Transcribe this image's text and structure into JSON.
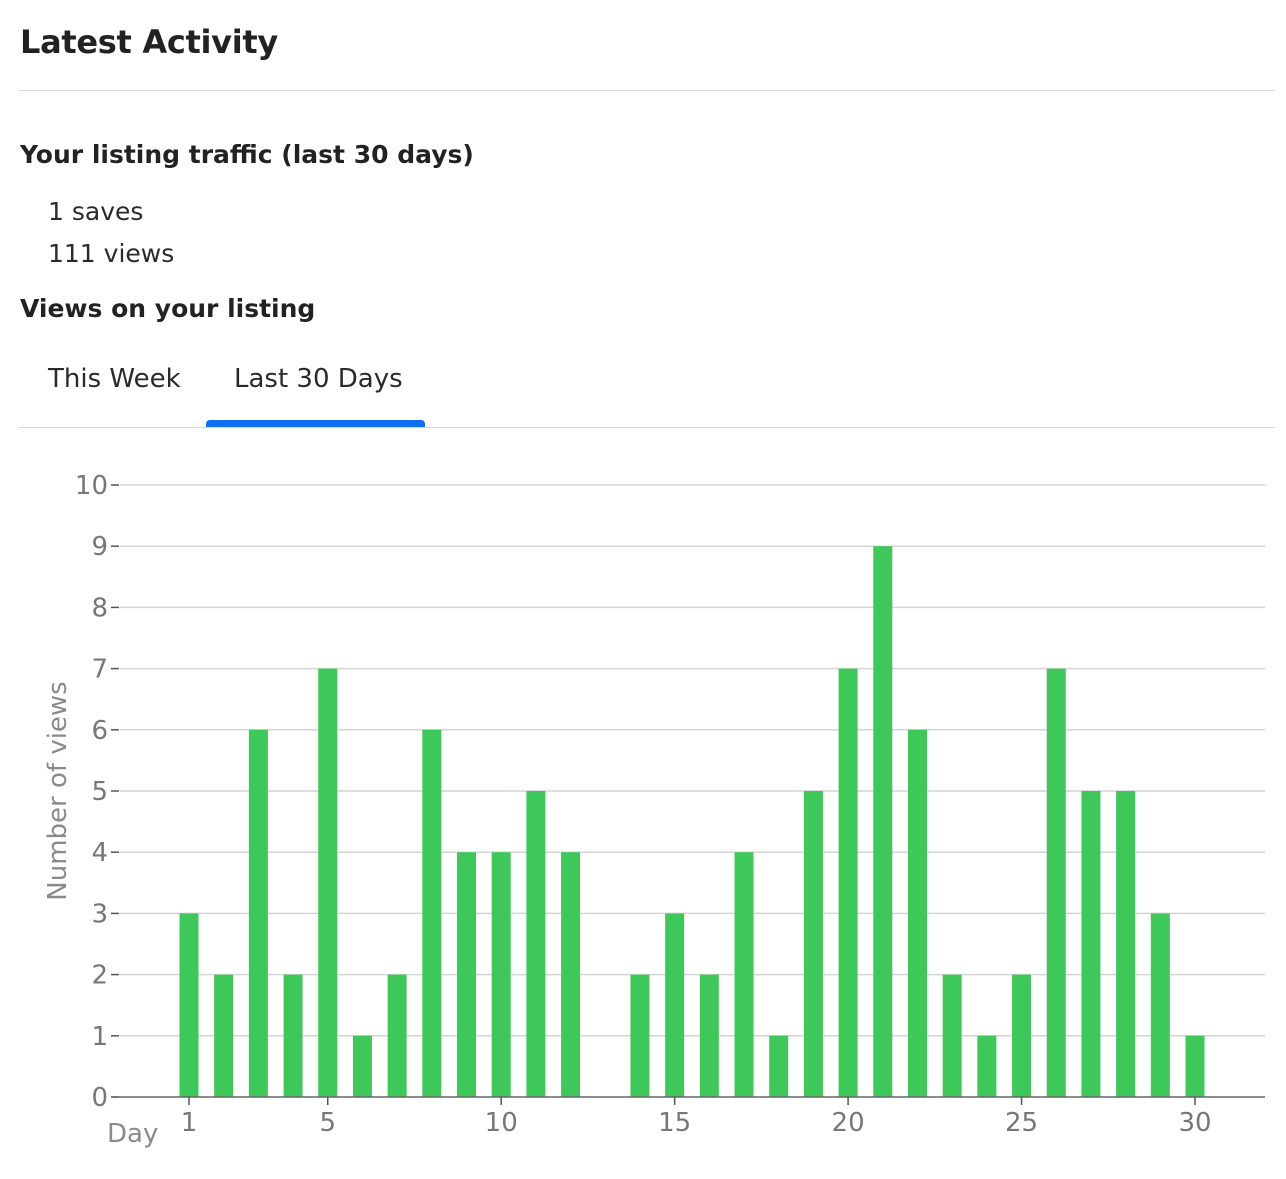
{
  "page": {
    "title": "Latest Activity",
    "traffic_heading": "Your listing traffic (last 30 days)",
    "saves_text": "1 saves",
    "views_text": "111 views",
    "views_heading": "Views on your listing"
  },
  "tabs": [
    {
      "label": "This Week",
      "selected": false
    },
    {
      "label": "Last 30 Days",
      "selected": true
    }
  ],
  "colors": {
    "bar": "#3ec85a",
    "tab_indicator": "#0f6ff0",
    "axis_text": "#777777",
    "gridline": "#d4d4d4"
  },
  "chart_data": {
    "type": "bar",
    "x": [
      1,
      2,
      3,
      4,
      5,
      6,
      7,
      8,
      9,
      10,
      11,
      12,
      13,
      14,
      15,
      16,
      17,
      18,
      19,
      20,
      21,
      22,
      23,
      24,
      25,
      26,
      27,
      28,
      29,
      30
    ],
    "values": [
      3,
      2,
      6,
      2,
      7,
      1,
      2,
      6,
      4,
      4,
      5,
      4,
      0,
      2,
      3,
      2,
      4,
      1,
      5,
      7,
      9,
      6,
      2,
      1,
      2,
      7,
      5,
      5,
      3,
      1
    ],
    "xlabel": "Day",
    "ylabel": "Number of views",
    "xticks": [
      1,
      5,
      10,
      15,
      20,
      25,
      30
    ],
    "yticks": [
      0,
      1,
      2,
      3,
      4,
      5,
      6,
      7,
      8,
      9,
      10
    ],
    "ylim": [
      0,
      10
    ],
    "grid": true,
    "legend": false
  }
}
